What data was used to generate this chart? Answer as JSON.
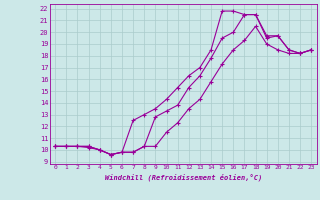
{
  "xlabel": "Windchill (Refroidissement éolien,°C)",
  "bg_color": "#cce8e8",
  "grid_color": "#aacccc",
  "line_color": "#990099",
  "xlim": [
    -0.5,
    23.5
  ],
  "ylim": [
    8.8,
    22.4
  ],
  "xticks": [
    0,
    1,
    2,
    3,
    4,
    5,
    6,
    7,
    8,
    9,
    10,
    11,
    12,
    13,
    14,
    15,
    16,
    17,
    18,
    19,
    20,
    21,
    22,
    23
  ],
  "yticks": [
    9,
    10,
    11,
    12,
    13,
    14,
    15,
    16,
    17,
    18,
    19,
    20,
    21,
    22
  ],
  "line1_x": [
    0,
    1,
    2,
    3,
    4,
    5,
    6,
    7,
    8,
    9,
    10,
    11,
    12,
    13,
    14,
    15,
    16,
    17,
    18,
    19,
    20,
    21,
    22,
    23
  ],
  "line1_y": [
    10.3,
    10.3,
    10.3,
    10.3,
    10.0,
    9.6,
    9.8,
    9.8,
    10.3,
    12.8,
    13.3,
    13.8,
    15.3,
    16.3,
    17.8,
    19.5,
    20.0,
    21.5,
    21.5,
    19.5,
    19.7,
    18.5,
    18.2,
    18.5
  ],
  "line2_x": [
    0,
    1,
    2,
    3,
    4,
    5,
    6,
    7,
    8,
    9,
    10,
    11,
    12,
    13,
    14,
    15,
    16,
    17,
    18,
    19,
    20,
    21,
    22,
    23
  ],
  "line2_y": [
    10.3,
    10.3,
    10.3,
    10.2,
    10.0,
    9.6,
    9.8,
    12.5,
    13.0,
    13.5,
    14.3,
    15.3,
    16.3,
    17.0,
    18.5,
    21.8,
    21.8,
    21.5,
    21.5,
    19.7,
    19.7,
    18.5,
    18.2,
    18.5
  ],
  "line3_x": [
    0,
    1,
    2,
    3,
    4,
    5,
    6,
    7,
    8,
    9,
    10,
    11,
    12,
    13,
    14,
    15,
    16,
    17,
    18,
    19,
    20,
    21,
    22,
    23
  ],
  "line3_y": [
    10.3,
    10.3,
    10.3,
    10.3,
    10.0,
    9.6,
    9.8,
    9.8,
    10.3,
    10.3,
    11.5,
    12.3,
    13.5,
    14.3,
    15.8,
    17.3,
    18.5,
    19.3,
    20.5,
    19.0,
    18.5,
    18.2,
    18.2,
    18.5
  ]
}
